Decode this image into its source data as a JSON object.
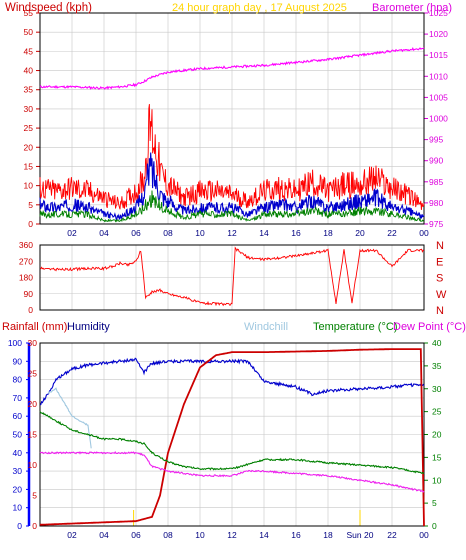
{
  "colors": {
    "windspeed": "#ff0000",
    "gust_avg": "#0000cc",
    "wind_low": "#008000",
    "barometer": "#ff00ff",
    "direction": "#ff0000",
    "rainfall": "#cc0000",
    "humidity": "#0000cc",
    "windchill": "#a0c8e0",
    "temperature": "#008000",
    "dewpoint": "#ee22ee",
    "grid": "#c8c8c8",
    "axis": "#000000",
    "hum_axis": "#0000ff",
    "marker": "#ffd700"
  },
  "chart_data": [
    {
      "type": "line",
      "title": "24 hour graph day , 17 August 2025",
      "left_label": "Windspeed (kph)",
      "right_label": "Barometer (hpa)",
      "x_ticks": [
        "02",
        "04",
        "06",
        "08",
        "10",
        "12",
        "14",
        "16",
        "18",
        "20",
        "22",
        "00"
      ],
      "y_left_ticks": [
        "0",
        "5",
        "10",
        "15",
        "20",
        "25",
        "30",
        "35",
        "40",
        "45",
        "50",
        "55"
      ],
      "y_right_ticks": [
        "975",
        "980",
        "985",
        "990",
        "995",
        "1000",
        "1005",
        "1010",
        "1015",
        "1020",
        "1025"
      ],
      "ylim_left": [
        0,
        55
      ],
      "ylim_right": [
        975,
        1025
      ],
      "grid": true,
      "series": [
        {
          "name": "Barometer",
          "axis": "right",
          "x": [
            0,
            2,
            4,
            5,
            6,
            6.5,
            7,
            8,
            10,
            12,
            14,
            16,
            18,
            20,
            22,
            24
          ],
          "values": [
            1007.5,
            1007.5,
            1007.2,
            1007.5,
            1008.0,
            1008.8,
            1009.8,
            1011.0,
            1011.8,
            1012.2,
            1012.6,
            1013.3,
            1014.0,
            1015.0,
            1016.0,
            1016.6
          ]
        },
        {
          "name": "Windspeed gust",
          "axis": "left",
          "x": [
            0,
            1,
            2,
            3,
            4,
            5,
            6,
            6.5,
            6.9,
            7.2,
            7.6,
            8,
            9,
            10,
            11,
            12,
            13,
            14,
            15,
            16,
            17,
            18,
            19,
            20,
            21,
            22,
            23,
            24
          ],
          "values": [
            11,
            10,
            11,
            10,
            8,
            6,
            10,
            14,
            31,
            24,
            15,
            12,
            8,
            10,
            10,
            9,
            7,
            10,
            11,
            10,
            13,
            10,
            12,
            12,
            14,
            11,
            9,
            5
          ]
        },
        {
          "name": "Windspeed avg",
          "axis": "left",
          "x": [
            0,
            1,
            2,
            3,
            4,
            5,
            6,
            6.5,
            6.9,
            7.2,
            7.6,
            8,
            9,
            10,
            11,
            12,
            13,
            14,
            15,
            16,
            17,
            18,
            19,
            20,
            21,
            22,
            23,
            24
          ],
          "values": [
            6,
            5,
            6,
            5,
            3,
            2,
            5,
            9,
            18,
            14,
            9,
            7,
            4,
            5,
            5,
            5,
            3,
            5,
            6,
            5,
            7,
            5,
            6,
            7,
            8,
            5,
            4,
            2
          ]
        },
        {
          "name": "Windspeed low",
          "axis": "left",
          "x": [
            0,
            1,
            2,
            3,
            4,
            5,
            6,
            6.5,
            6.9,
            7.2,
            7.6,
            8,
            9,
            10,
            11,
            12,
            13,
            14,
            15,
            16,
            17,
            18,
            19,
            20,
            21,
            22,
            23,
            24
          ],
          "values": [
            3,
            3,
            3,
            3,
            1,
            1,
            3,
            5,
            8,
            7,
            5,
            4,
            2,
            3,
            3,
            3,
            1,
            3,
            3,
            3,
            4,
            3,
            3,
            4,
            4,
            3,
            2,
            1
          ]
        }
      ]
    },
    {
      "type": "line",
      "y_left_ticks": [
        "0",
        "90",
        "180",
        "270",
        "360"
      ],
      "y_right_labels": [
        "N",
        "W",
        "S",
        "E",
        "N"
      ],
      "ylim_left": [
        0,
        360
      ],
      "grid": true,
      "series": [
        {
          "name": "Wind direction",
          "x": [
            0,
            1,
            2,
            3,
            4,
            4.5,
            5,
            5.5,
            6,
            6.3,
            6.6,
            7,
            7.5,
            8,
            9,
            10,
            11,
            12,
            12.2,
            13,
            14,
            16,
            18,
            18.5,
            19,
            19.5,
            20,
            21,
            22,
            23,
            24
          ],
          "values": [
            230,
            225,
            225,
            230,
            230,
            240,
            260,
            250,
            270,
            330,
            70,
            100,
            110,
            90,
            70,
            40,
            35,
            30,
            340,
            290,
            280,
            300,
            330,
            40,
            330,
            40,
            330,
            330,
            240,
            330,
            330
          ]
        }
      ]
    },
    {
      "type": "line",
      "left_labels": [
        "Rainfall (mm)",
        "Humidity"
      ],
      "center_label": "Windchill",
      "right_labels": [
        "Temperature (°C)",
        "Dew Point (°C)"
      ],
      "x_ticks": [
        "02",
        "04",
        "06",
        "08",
        "10",
        "12",
        "14",
        "16",
        "18",
        "Sun 20",
        "22",
        "00"
      ],
      "y_hum_ticks": [
        "0",
        "10",
        "20",
        "30",
        "40",
        "50",
        "60",
        "70",
        "80",
        "90",
        "100"
      ],
      "y_rain_ticks": [
        "0",
        "5",
        "10",
        "15",
        "20",
        "25",
        "30"
      ],
      "y_temp_ticks": [
        "0",
        "5",
        "10",
        "15",
        "20",
        "25",
        "30",
        "35",
        "40"
      ],
      "ylim_humidity": [
        0,
        100
      ],
      "ylim_rain": [
        0,
        30
      ],
      "ylim_temp": [
        0,
        40
      ],
      "grid": true,
      "series": [
        {
          "name": "Humidity",
          "axis": "humidity",
          "x": [
            0,
            0.5,
            1,
            2,
            3,
            4,
            5,
            6,
            6.5,
            7,
            8,
            10,
            12,
            13,
            14,
            16,
            17,
            18,
            20,
            22,
            23,
            24
          ],
          "values": [
            66,
            72,
            80,
            86,
            88,
            89,
            90,
            91,
            84,
            89,
            90,
            90,
            90,
            90,
            79,
            76,
            72,
            74,
            75,
            76,
            77,
            77
          ]
        },
        {
          "name": "Rainfall",
          "axis": "rain",
          "x": [
            0,
            2,
            4,
            6,
            7,
            7.5,
            8,
            8.5,
            9,
            9.5,
            10,
            11,
            12,
            14,
            16,
            18,
            20,
            22,
            23.8,
            24
          ],
          "values": [
            0.2,
            0.4,
            0.6,
            0.8,
            1.5,
            5,
            12,
            16,
            20,
            23,
            26,
            28,
            28.5,
            28.5,
            28.6,
            28.7,
            28.9,
            29,
            29,
            0
          ]
        },
        {
          "name": "Windchill",
          "axis": "temp",
          "x": [
            0.5,
            1,
            2,
            3,
            3.2
          ],
          "values": [
            29,
            30,
            24,
            22,
            17
          ]
        },
        {
          "name": "Temperature",
          "axis": "temp",
          "x": [
            0,
            1,
            2,
            3,
            4,
            5,
            6,
            6.5,
            7,
            8,
            9,
            10,
            12,
            13,
            14,
            16,
            18,
            20,
            22,
            24
          ],
          "values": [
            25,
            23,
            21,
            20,
            19,
            19,
            18.5,
            18,
            16,
            14,
            13,
            12.5,
            12.5,
            13.5,
            14.5,
            14.5,
            13.8,
            13.3,
            12.8,
            11.5
          ]
        },
        {
          "name": "Dew Point",
          "axis": "temp",
          "x": [
            0,
            1,
            2,
            3,
            4,
            5,
            6,
            6.5,
            7,
            8,
            9,
            10,
            12,
            13,
            14,
            16,
            18,
            20,
            22,
            24
          ],
          "values": [
            16,
            16,
            16,
            16,
            16,
            16,
            16,
            15.5,
            13,
            12,
            11.5,
            11,
            11,
            12,
            12,
            11.5,
            11,
            10,
            9,
            7.5
          ]
        }
      ]
    }
  ]
}
